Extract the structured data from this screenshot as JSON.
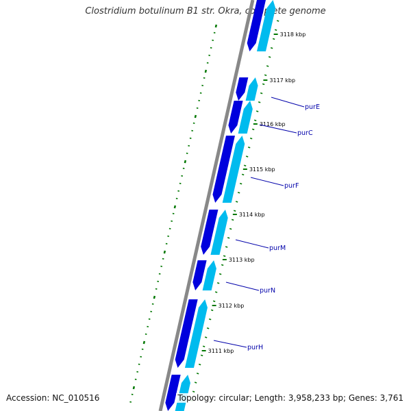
{
  "title": "Clostridium botulinum B1 str. Okra, complete genome",
  "footer": {
    "accession": "Accession: NC_010516",
    "summary": "Topology: circular; Length: 3,958,233 bp; Genes: 3,761"
  },
  "colors": {
    "backbone": "#888888",
    "forward_strand": "#0000dd",
    "reverse_strand": "#00bbee",
    "ticks": "#007700",
    "gene_label": "#0000aa"
  },
  "ticks": [
    {
      "kbp": 3118,
      "label": "3118 kbp"
    },
    {
      "kbp": 3117,
      "label": "3117 kbp"
    },
    {
      "kbp": 3116,
      "label": "3116 kbp"
    },
    {
      "kbp": 3115,
      "label": "3115 kbp"
    },
    {
      "kbp": 3114,
      "label": "3114 kbp"
    },
    {
      "kbp": 3113,
      "label": "3113 kbp"
    },
    {
      "kbp": 3112,
      "label": "3112 kbp"
    },
    {
      "kbp": 3111,
      "label": "3111 kbp"
    }
  ],
  "genes": [
    {
      "name": "purE"
    },
    {
      "name": "purC"
    },
    {
      "name": "purF"
    },
    {
      "name": "purM"
    },
    {
      "name": "purN"
    },
    {
      "name": "purH"
    }
  ]
}
